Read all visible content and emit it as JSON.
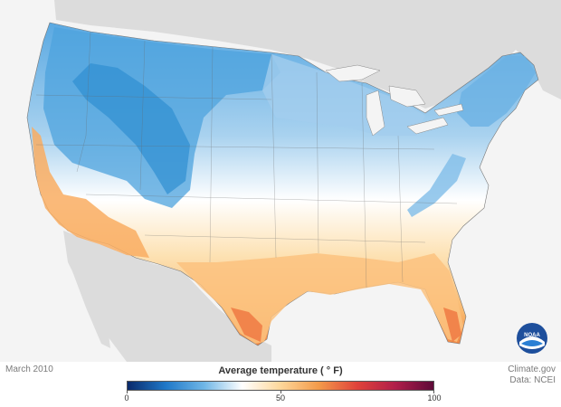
{
  "map": {
    "date_label": "March 2010",
    "legend": {
      "title": "Average temperature ( ° F)",
      "ticks": [
        "0",
        "50",
        "100"
      ],
      "colors": [
        "#0a2a6b",
        "#1f78c8",
        "#6fb6e6",
        "#ffffff",
        "#fdd79a",
        "#f39a4a",
        "#e0433a",
        "#b01e4a",
        "#5e0a38"
      ]
    },
    "credit": {
      "line1": "Climate.gov",
      "line2": "Data: NCEI"
    },
    "logo": {
      "text": "NOAA",
      "icon": "noaa-logo-icon"
    },
    "palette": {
      "land_background": "#dcdcdc",
      "ocean": "#f4f4f4",
      "cold_blue": "#3a9ad9",
      "light_blue": "#a9d2ef",
      "neutral": "#ffffff",
      "warm_peach": "#fce0b0",
      "warm_orange": "#f7a85a",
      "hot_orange": "#ef7a43"
    }
  }
}
